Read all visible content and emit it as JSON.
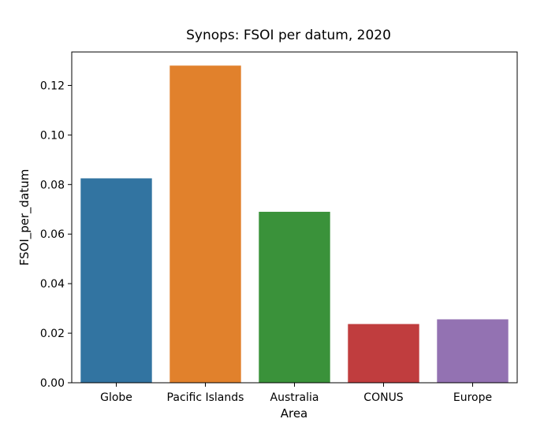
{
  "chart_data": {
    "type": "bar",
    "title": "Synops: FSOI per datum, 2020",
    "xlabel": "Area",
    "ylabel": "FSOI_per_datum",
    "categories": [
      "Globe",
      "Pacific Islands",
      "Australia",
      "CONUS",
      "Europe"
    ],
    "values": [
      0.0825,
      0.128,
      0.069,
      0.0237,
      0.0256
    ],
    "colors": [
      "#3274a1",
      "#e1812c",
      "#3a923a",
      "#c03d3e",
      "#9372b2"
    ],
    "ylim": [
      0,
      0.1335
    ],
    "yticks": [
      "0.00",
      "0.02",
      "0.04",
      "0.06",
      "0.08",
      "0.10",
      "0.12"
    ],
    "grid": false,
    "legend": "none"
  }
}
